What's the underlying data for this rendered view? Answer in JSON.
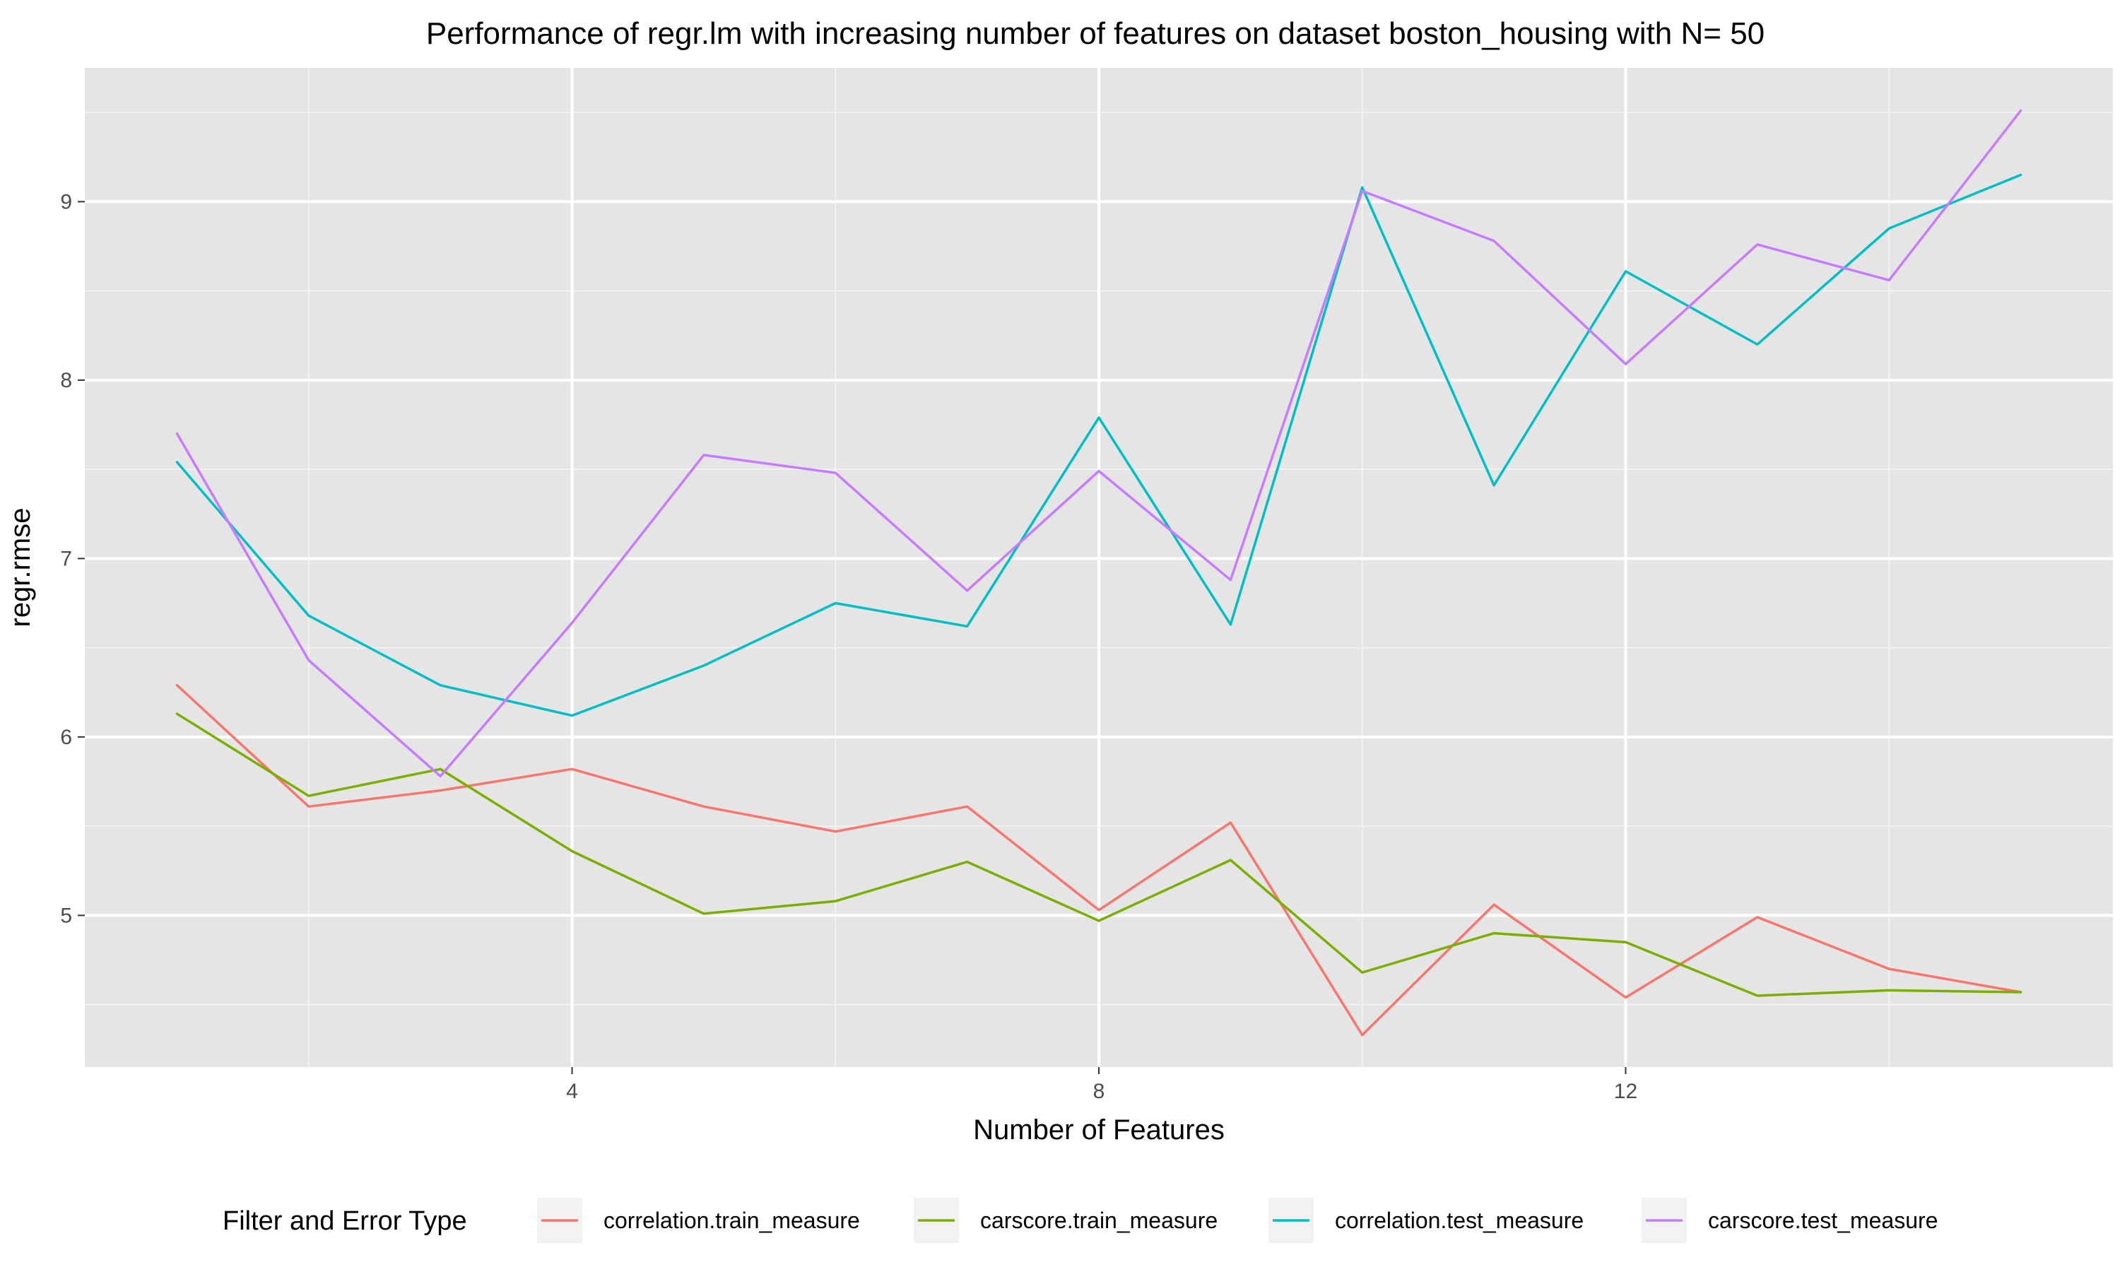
{
  "chart_data": {
    "type": "line",
    "title": "Performance of regr.lm with increasing number of features on dataset boston_housing with N= 50",
    "xlabel": "Number of Features",
    "ylabel": "regr.rmse",
    "xlim": [
      0.3,
      15.7
    ],
    "ylim": [
      4.15,
      9.75
    ],
    "x_ticks": [
      4,
      8,
      12
    ],
    "y_ticks": [
      5,
      6,
      7,
      8,
      9
    ],
    "grid": true,
    "legend_title": "Filter and Error Type",
    "legend_position": "bottom",
    "x": [
      1,
      2,
      3,
      4,
      5,
      6,
      7,
      8,
      9,
      10,
      11,
      12,
      13,
      14,
      15
    ],
    "series": [
      {
        "name": "correlation.train_measure",
        "color": "#F8766D",
        "values": [
          6.29,
          5.61,
          5.7,
          5.82,
          5.61,
          5.47,
          5.61,
          5.03,
          5.52,
          4.33,
          5.06,
          4.54,
          4.99,
          4.7,
          4.57
        ]
      },
      {
        "name": "carscore.train_measure",
        "color": "#7CAE00",
        "values": [
          6.13,
          5.67,
          5.82,
          5.36,
          5.01,
          5.08,
          5.3,
          4.97,
          5.31,
          4.68,
          4.9,
          4.85,
          4.55,
          4.58,
          4.57
        ]
      },
      {
        "name": "correlation.test_measure",
        "color": "#00BFC4",
        "values": [
          7.54,
          6.68,
          6.29,
          6.12,
          6.4,
          6.75,
          6.62,
          7.79,
          6.63,
          9.08,
          7.41,
          8.61,
          8.2,
          8.85,
          9.15
        ]
      },
      {
        "name": "carscore.test_measure",
        "color": "#C77CFF",
        "values": [
          7.7,
          6.43,
          5.78,
          6.64,
          7.58,
          7.48,
          6.82,
          7.49,
          6.88,
          9.06,
          8.78,
          8.09,
          8.76,
          8.56,
          9.51
        ]
      }
    ]
  }
}
